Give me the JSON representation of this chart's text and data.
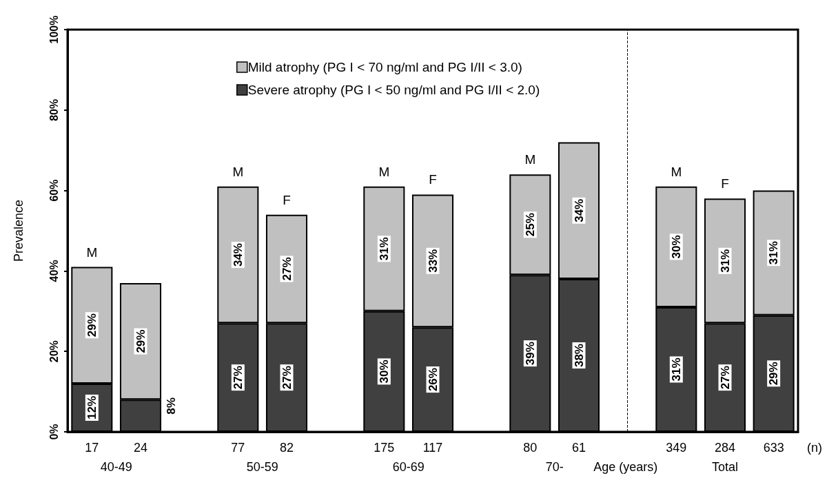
{
  "chart_data": {
    "type": "bar",
    "stacked": true,
    "ylabel": "Prevalence",
    "categories": [
      "17",
      "24",
      null,
      "77",
      "82",
      null,
      "175",
      "117",
      null,
      "80",
      "61",
      null,
      "349",
      "284",
      "633"
    ],
    "series": [
      {
        "name": "Severe atrophy (PG I < 50 ng/ml and PG I/II < 2.0)",
        "color": "#404040",
        "values": [
          12,
          8,
          null,
          27,
          27,
          null,
          30,
          26,
          null,
          39,
          38,
          null,
          31,
          27,
          29
        ],
        "value_labels": [
          "12%",
          "8%",
          null,
          "27%",
          "27%",
          null,
          "30%",
          "26%",
          null,
          "39%",
          "38%",
          null,
          "31%",
          "27%",
          "29%"
        ]
      },
      {
        "name": "Mild atrophy (PG I < 70 ng/ml and PG I/II < 3.0)",
        "color": "#c0c0c0",
        "values": [
          29,
          29,
          null,
          34,
          27,
          null,
          31,
          33,
          null,
          25,
          34,
          null,
          30,
          31,
          31
        ],
        "value_labels": [
          "29%",
          "29%",
          null,
          "34%",
          "27%",
          null,
          "31%",
          "33%",
          null,
          "25%",
          "34%",
          null,
          "30%",
          "31%",
          "31%"
        ]
      }
    ],
    "ylim": [
      0,
      100
    ],
    "yticks": [
      {
        "value": 0,
        "label": "0%"
      },
      {
        "value": 20,
        "label": "20%"
      },
      {
        "value": 40,
        "label": "40%"
      },
      {
        "value": 60,
        "label": "60%"
      },
      {
        "value": 80,
        "label": "80%"
      },
      {
        "value": 100,
        "label": "100%"
      }
    ],
    "legend": "top",
    "ref_lines": [
      {
        "axis": "x",
        "value": null,
        "line_style": "dashed",
        "color": "#000000"
      }
    ],
    "annotations": [
      {
        "text": "M",
        "x": "17",
        "y": 41
      },
      {
        "text": "M",
        "x": "77",
        "y": 61
      },
      {
        "text": "F",
        "x": "82",
        "y": 54
      },
      {
        "text": "M",
        "x": "175",
        "y": 61
      },
      {
        "text": "F",
        "x": "117",
        "y": 59
      },
      {
        "text": "M",
        "x": "80",
        "y": 64
      },
      {
        "text": "M",
        "x": "349",
        "y": 61
      },
      {
        "text": "F",
        "x": "284",
        "y": 58
      },
      "40-49",
      "50-59",
      "60-69",
      "70-",
      "Age (years)",
      "Total",
      "(n)"
    ]
  }
}
